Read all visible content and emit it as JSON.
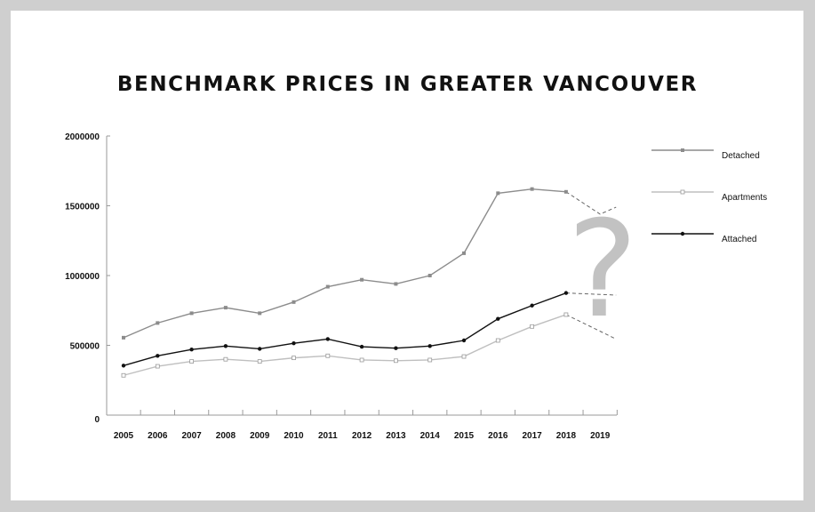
{
  "chart_data": {
    "type": "line",
    "title": "BENCHMARK PRICES IN GREATER VANCOUVER",
    "xlabel": "",
    "ylabel": "",
    "categories": [
      "2005",
      "2006",
      "2007",
      "2008",
      "2009",
      "2010",
      "2011",
      "2012",
      "2013",
      "2014",
      "2015",
      "2016",
      "2017",
      "2018",
      "2019"
    ],
    "yticks": [
      "0",
      "500000",
      "1000000",
      "1500000",
      "2000000"
    ],
    "ylim": [
      0,
      2000000
    ],
    "grid": false,
    "legend_position": "right",
    "series": [
      {
        "name": "Detached",
        "color": "#8c8c8c",
        "marker": "square-filled",
        "values": [
          555000,
          660000,
          730000,
          770000,
          730000,
          810000,
          920000,
          970000,
          940000,
          1000000,
          1160000,
          1590000,
          1620000,
          1600000,
          null
        ],
        "projection": [
          1600000,
          1440000,
          1490000
        ]
      },
      {
        "name": "Apartments",
        "color": "#bfbfbf",
        "marker": "square-open",
        "values": [
          285000,
          350000,
          385000,
          400000,
          385000,
          410000,
          425000,
          395000,
          390000,
          395000,
          420000,
          535000,
          635000,
          720000,
          null
        ],
        "projection": [
          720000,
          545000
        ]
      },
      {
        "name": "Attached",
        "color": "#111111",
        "marker": "circle-filled",
        "values": [
          355000,
          425000,
          470000,
          495000,
          475000,
          515000,
          545000,
          490000,
          480000,
          495000,
          535000,
          690000,
          785000,
          875000,
          null
        ],
        "projection": [
          875000,
          860000
        ]
      }
    ],
    "annotation": "?"
  }
}
